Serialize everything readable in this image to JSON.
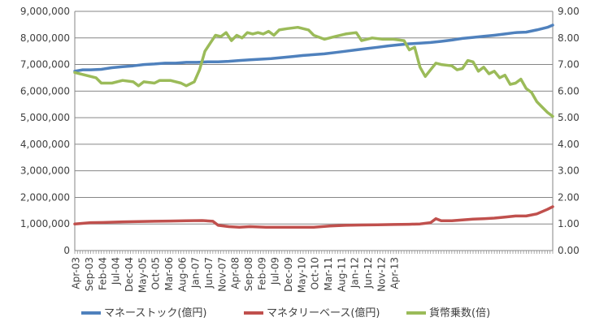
{
  "chart_data": {
    "type": "line",
    "x_tick_labels": [
      "Apr-03",
      "Sep-03",
      "Feb-04",
      "Jul-04",
      "Dec-04",
      "May-05",
      "Oct-05",
      "Mar-06",
      "Aug-06",
      "Jan-07",
      "Jun-07",
      "Nov-07",
      "Apr-08",
      "Sep-08",
      "Feb-09",
      "Jul-09",
      "Dec-09",
      "May-10",
      "Oct-10",
      "Mar-11",
      "Aug-11",
      "Jan-12",
      "Jun-12",
      "Nov-12",
      "Apr-13"
    ],
    "left_axis": {
      "ylim": [
        0,
        9000000
      ],
      "ticks": [
        "0",
        "1,000,000",
        "2,000,000",
        "3,000,000",
        "4,000,000",
        "5,000,000",
        "6,000,000",
        "7,000,000",
        "8,000,000",
        "9,000,000"
      ]
    },
    "right_axis": {
      "ylim": [
        0,
        9
      ],
      "ticks": [
        "0.00",
        "1.00",
        "2.00",
        "3.00",
        "4.00",
        "5.00",
        "6.00",
        "7.00",
        "8.00",
        "9.00"
      ]
    },
    "grid": true,
    "legend_position": "bottom",
    "colors": {
      "money_stock": "#4F81BD",
      "monetary_base": "#C0504D",
      "multiplier": "#9BBB59",
      "grid": "#868686",
      "text": "#404040"
    },
    "series": [
      {
        "name": "マネーストック(億円)",
        "axis": "left",
        "points": [
          [
            0,
            6750000
          ],
          [
            3,
            6800000
          ],
          [
            6,
            6800000
          ],
          [
            10,
            6820000
          ],
          [
            14,
            6880000
          ],
          [
            18,
            6920000
          ],
          [
            22,
            6950000
          ],
          [
            26,
            7000000
          ],
          [
            30,
            7020000
          ],
          [
            34,
            7050000
          ],
          [
            38,
            7050000
          ],
          [
            42,
            7080000
          ],
          [
            46,
            7080000
          ],
          [
            50,
            7100000
          ],
          [
            54,
            7100000
          ],
          [
            58,
            7120000
          ],
          [
            62,
            7150000
          ],
          [
            66,
            7180000
          ],
          [
            70,
            7200000
          ],
          [
            74,
            7220000
          ],
          [
            78,
            7260000
          ],
          [
            82,
            7300000
          ],
          [
            86,
            7340000
          ],
          [
            90,
            7370000
          ],
          [
            94,
            7400000
          ],
          [
            98,
            7450000
          ],
          [
            102,
            7500000
          ],
          [
            106,
            7550000
          ],
          [
            110,
            7600000
          ],
          [
            114,
            7650000
          ],
          [
            118,
            7700000
          ],
          [
            122,
            7740000
          ],
          [
            126,
            7780000
          ],
          [
            130,
            7800000
          ],
          [
            134,
            7830000
          ],
          [
            138,
            7870000
          ],
          [
            142,
            7920000
          ],
          [
            146,
            7980000
          ],
          [
            150,
            8020000
          ],
          [
            154,
            8060000
          ],
          [
            158,
            8100000
          ],
          [
            162,
            8150000
          ],
          [
            166,
            8200000
          ],
          [
            170,
            8220000
          ],
          [
            174,
            8300000
          ],
          [
            178,
            8400000
          ],
          [
            180,
            8480000
          ]
        ]
      },
      {
        "name": "マネタリーベース(億円)",
        "axis": "left",
        "points": [
          [
            0,
            1000000
          ],
          [
            6,
            1050000
          ],
          [
            12,
            1060000
          ],
          [
            18,
            1080000
          ],
          [
            24,
            1090000
          ],
          [
            30,
            1100000
          ],
          [
            36,
            1110000
          ],
          [
            42,
            1120000
          ],
          [
            48,
            1130000
          ],
          [
            52,
            1100000
          ],
          [
            54,
            950000
          ],
          [
            58,
            900000
          ],
          [
            62,
            880000
          ],
          [
            66,
            900000
          ],
          [
            72,
            880000
          ],
          [
            78,
            880000
          ],
          [
            84,
            880000
          ],
          [
            90,
            880000
          ],
          [
            96,
            920000
          ],
          [
            102,
            950000
          ],
          [
            108,
            960000
          ],
          [
            114,
            970000
          ],
          [
            120,
            980000
          ],
          [
            126,
            990000
          ],
          [
            130,
            1000000
          ],
          [
            134,
            1050000
          ],
          [
            136,
            1200000
          ],
          [
            138,
            1120000
          ],
          [
            142,
            1120000
          ],
          [
            146,
            1150000
          ],
          [
            150,
            1180000
          ],
          [
            154,
            1200000
          ],
          [
            158,
            1220000
          ],
          [
            162,
            1260000
          ],
          [
            166,
            1300000
          ],
          [
            170,
            1300000
          ],
          [
            174,
            1380000
          ],
          [
            178,
            1550000
          ],
          [
            180,
            1650000
          ]
        ]
      },
      {
        "name": "貨幣乗数(倍)",
        "axis": "right",
        "points": [
          [
            0,
            6.7
          ],
          [
            4,
            6.6
          ],
          [
            8,
            6.5
          ],
          [
            10,
            6.3
          ],
          [
            14,
            6.3
          ],
          [
            18,
            6.4
          ],
          [
            22,
            6.35
          ],
          [
            24,
            6.2
          ],
          [
            26,
            6.35
          ],
          [
            30,
            6.3
          ],
          [
            32,
            6.4
          ],
          [
            36,
            6.4
          ],
          [
            40,
            6.3
          ],
          [
            42,
            6.2
          ],
          [
            45,
            6.35
          ],
          [
            47,
            6.8
          ],
          [
            49,
            7.5
          ],
          [
            51,
            7.8
          ],
          [
            53,
            8.1
          ],
          [
            55,
            8.05
          ],
          [
            57,
            8.2
          ],
          [
            59,
            7.9
          ],
          [
            61,
            8.1
          ],
          [
            63,
            8.0
          ],
          [
            65,
            8.2
          ],
          [
            67,
            8.15
          ],
          [
            69,
            8.2
          ],
          [
            71,
            8.15
          ],
          [
            73,
            8.25
          ],
          [
            75,
            8.1
          ],
          [
            77,
            8.3
          ],
          [
            80,
            8.35
          ],
          [
            84,
            8.4
          ],
          [
            88,
            8.3
          ],
          [
            90,
            8.1
          ],
          [
            94,
            7.95
          ],
          [
            98,
            8.05
          ],
          [
            102,
            8.15
          ],
          [
            106,
            8.2
          ],
          [
            108,
            7.9
          ],
          [
            112,
            8.0
          ],
          [
            116,
            7.95
          ],
          [
            120,
            7.95
          ],
          [
            124,
            7.9
          ],
          [
            126,
            7.55
          ],
          [
            128,
            7.65
          ],
          [
            130,
            6.9
          ],
          [
            132,
            6.55
          ],
          [
            134,
            6.8
          ],
          [
            136,
            7.05
          ],
          [
            138,
            7.0
          ],
          [
            142,
            6.95
          ],
          [
            144,
            6.8
          ],
          [
            146,
            6.85
          ],
          [
            148,
            7.15
          ],
          [
            150,
            7.1
          ],
          [
            152,
            6.75
          ],
          [
            154,
            6.9
          ],
          [
            156,
            6.65
          ],
          [
            158,
            6.75
          ],
          [
            160,
            6.5
          ],
          [
            162,
            6.6
          ],
          [
            164,
            6.25
          ],
          [
            166,
            6.3
          ],
          [
            168,
            6.45
          ],
          [
            170,
            6.1
          ],
          [
            172,
            5.95
          ],
          [
            174,
            5.6
          ],
          [
            176,
            5.4
          ],
          [
            178,
            5.2
          ],
          [
            180,
            5.05
          ]
        ]
      }
    ]
  }
}
